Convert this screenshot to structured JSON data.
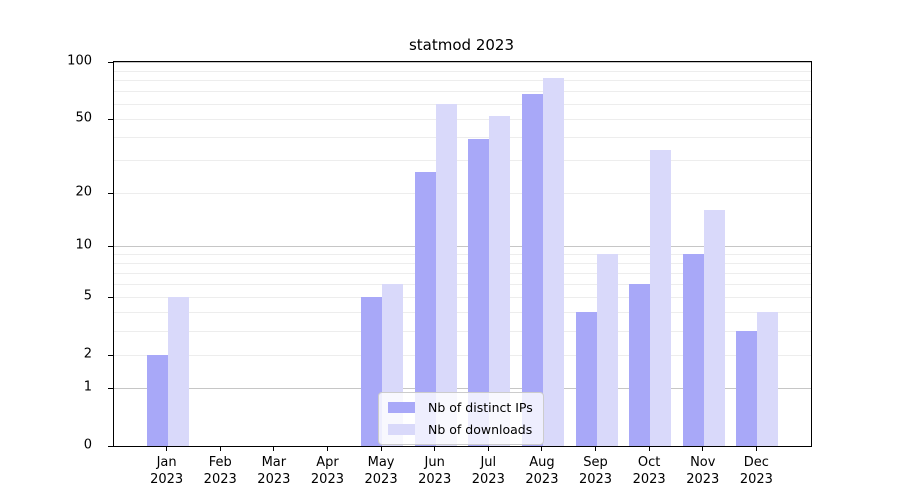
{
  "chart_data": {
    "type": "bar",
    "title": "statmod 2023",
    "year": "2023",
    "months": [
      "Jan",
      "Feb",
      "Mar",
      "Apr",
      "May",
      "Jun",
      "Jul",
      "Aug",
      "Sep",
      "Oct",
      "Nov",
      "Dec"
    ],
    "series": [
      {
        "name": "Nb of distinct IPs",
        "key": "distinct-ips",
        "color": "#a8a8f8",
        "values": [
          2,
          0,
          0,
          0,
          5,
          26,
          39,
          68,
          4,
          6,
          9,
          3
        ]
      },
      {
        "name": "Nb of downloads",
        "key": "downloads",
        "color": "#d9d9fa",
        "values": [
          5,
          0,
          0,
          0,
          6,
          60,
          52,
          82,
          9,
          34,
          16,
          4
        ]
      }
    ],
    "yscale": "log1p",
    "ylim": [
      0,
      100
    ],
    "yticks": [
      0,
      1,
      2,
      5,
      10,
      20,
      50,
      100
    ],
    "minor_gridlines": [
      2,
      3,
      4,
      5,
      6,
      7,
      8,
      9,
      20,
      30,
      40,
      50,
      60,
      70,
      80,
      90
    ],
    "major_gridlines": [
      1,
      10,
      100
    ],
    "legend_position": "lower center",
    "axis_color": "#000000",
    "grid_minor_color": "#ededed",
    "grid_major_color": "#c6c6c6"
  }
}
